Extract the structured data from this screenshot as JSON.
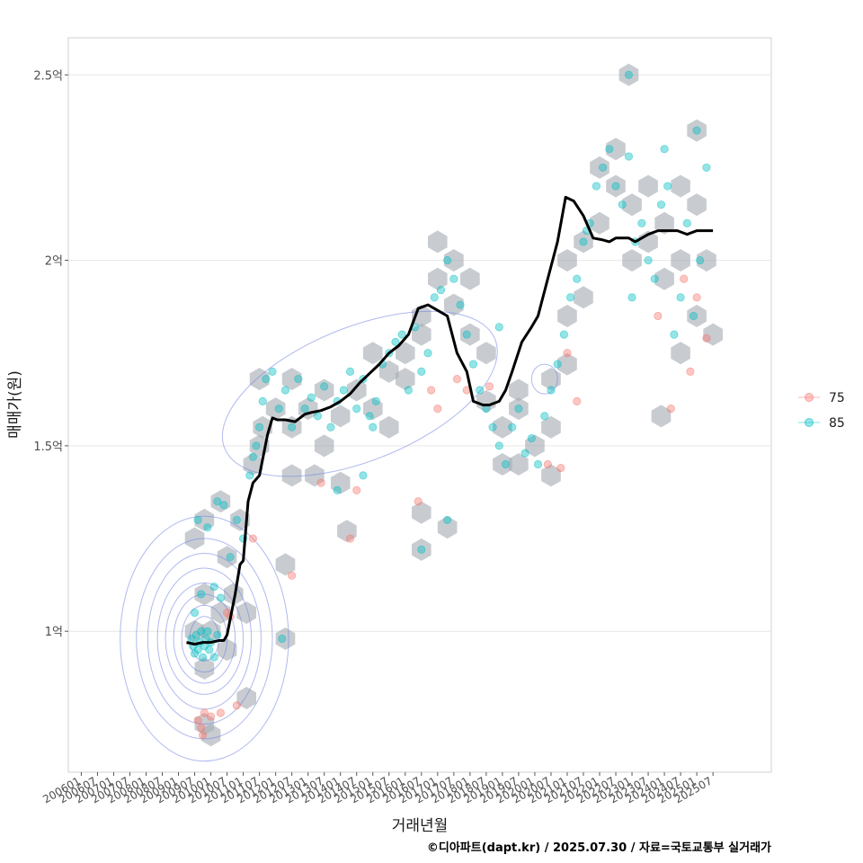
{
  "chart_data": {
    "type": "scatter",
    "title": "",
    "xlabel": "거래년월",
    "ylabel": "매매가(원)",
    "caption": "©디아파트(dapt.kr) / 2025.07.30 / 자료=국토교통부 실거래가",
    "x_ticks": [
      "200601",
      "200607",
      "200701",
      "200707",
      "200801",
      "200807",
      "200901",
      "200907",
      "201001",
      "201007",
      "201101",
      "201107",
      "201201",
      "201207",
      "201301",
      "201307",
      "201401",
      "201407",
      "201501",
      "201507",
      "201601",
      "201607",
      "201701",
      "201707",
      "201801",
      "201807",
      "201901",
      "201907",
      "202001",
      "202007",
      "202101",
      "202107",
      "202201",
      "202207",
      "202301",
      "202307",
      "202401",
      "202407",
      "202501",
      "202507"
    ],
    "y_ticks": [
      {
        "value": 1.0,
        "label": "1억"
      },
      {
        "value": 1.5,
        "label": "1.5억"
      },
      {
        "value": 2.0,
        "label": "2억"
      },
      {
        "value": 2.5,
        "label": "2.5억"
      }
    ],
    "ylim": [
      0.62,
      2.6
    ],
    "xlim": [
      2005.6,
      2027.3
    ],
    "y_unit": "억원",
    "grid": true,
    "legend_position": "right",
    "legend": [
      {
        "name": "75",
        "color": "#F8766D"
      },
      {
        "name": "85",
        "color": "#00BFC4"
      }
    ],
    "trend_line": {
      "name": "moving-average",
      "color": "#000000",
      "x": [
        2009.25,
        2009.5,
        2009.75,
        2010.0,
        2010.25,
        2010.4,
        2010.5,
        2010.75,
        2010.9,
        2011.0,
        2011.15,
        2011.3,
        2011.5,
        2011.75,
        2011.9,
        2012.05,
        2012.3,
        2012.6,
        2012.9,
        2013.1,
        2013.4,
        2013.7,
        2014.0,
        2014.3,
        2014.6,
        2014.9,
        2015.2,
        2015.5,
        2015.8,
        2016.1,
        2016.4,
        2016.7,
        2016.9,
        2017.1,
        2017.3,
        2017.6,
        2017.9,
        2018.1,
        2018.4,
        2018.6,
        2018.9,
        2019.1,
        2019.3,
        2019.6,
        2019.9,
        2020.1,
        2020.4,
        2020.7,
        2020.95,
        2021.2,
        2021.5,
        2021.8,
        2022.1,
        2022.3,
        2022.5,
        2022.7,
        2022.9,
        2023.1,
        2023.3,
        2023.5,
        2023.8,
        2024.1,
        2024.4,
        2024.7,
        2025.0,
        2025.3,
        2025.5
      ],
      "y": [
        0.97,
        0.965,
        0.97,
        0.97,
        0.975,
        0.975,
        0.99,
        1.1,
        1.18,
        1.19,
        1.35,
        1.4,
        1.42,
        1.53,
        1.575,
        1.57,
        1.57,
        1.565,
        1.585,
        1.59,
        1.595,
        1.605,
        1.62,
        1.64,
        1.67,
        1.695,
        1.72,
        1.75,
        1.77,
        1.8,
        1.87,
        1.88,
        1.87,
        1.86,
        1.85,
        1.75,
        1.7,
        1.62,
        1.61,
        1.61,
        1.62,
        1.65,
        1.7,
        1.78,
        1.82,
        1.85,
        1.95,
        2.05,
        2.17,
        2.16,
        2.12,
        2.06,
        2.055,
        2.05,
        2.06,
        2.06,
        2.06,
        2.05,
        2.06,
        2.07,
        2.08,
        2.08,
        2.08,
        2.07,
        2.08,
        2.08,
        2.08
      ]
    },
    "series": [
      {
        "name": "85",
        "color": "#00BFC4",
        "points": [
          [
            2009.4,
            0.98
          ],
          [
            2009.45,
            0.96
          ],
          [
            2009.5,
            0.94
          ],
          [
            2009.55,
            0.99
          ],
          [
            2009.6,
            0.95
          ],
          [
            2009.65,
            0.97
          ],
          [
            2009.7,
            1.0
          ],
          [
            2009.75,
            0.93
          ],
          [
            2009.8,
            0.96
          ],
          [
            2009.85,
            0.98
          ],
          [
            2009.9,
            1.0
          ],
          [
            2009.95,
            0.95
          ],
          [
            2010.0,
            0.97
          ],
          [
            2010.1,
            0.93
          ],
          [
            2010.2,
            0.99
          ],
          [
            2009.5,
            1.05
          ],
          [
            2009.7,
            1.1
          ],
          [
            2010.1,
            1.12
          ],
          [
            2010.3,
            1.09
          ],
          [
            2009.6,
            1.3
          ],
          [
            2009.9,
            1.28
          ],
          [
            2010.2,
            1.35
          ],
          [
            2010.4,
            1.34
          ],
          [
            2010.6,
            1.2
          ],
          [
            2010.8,
            1.3
          ],
          [
            2011.0,
            1.25
          ],
          [
            2011.2,
            1.42
          ],
          [
            2011.3,
            1.47
          ],
          [
            2011.4,
            1.5
          ],
          [
            2011.5,
            1.55
          ],
          [
            2011.6,
            1.62
          ],
          [
            2011.7,
            1.68
          ],
          [
            2011.9,
            1.7
          ],
          [
            2012.1,
            1.6
          ],
          [
            2012.3,
            1.65
          ],
          [
            2012.5,
            1.55
          ],
          [
            2012.7,
            1.68
          ],
          [
            2012.9,
            1.6
          ],
          [
            2013.1,
            1.63
          ],
          [
            2013.3,
            1.58
          ],
          [
            2013.5,
            1.66
          ],
          [
            2013.7,
            1.55
          ],
          [
            2013.9,
            1.62
          ],
          [
            2014.1,
            1.65
          ],
          [
            2014.3,
            1.7
          ],
          [
            2014.5,
            1.6
          ],
          [
            2014.7,
            1.68
          ],
          [
            2014.9,
            1.58
          ],
          [
            2015.1,
            1.62
          ],
          [
            2015.3,
            1.72
          ],
          [
            2015.5,
            1.75
          ],
          [
            2015.7,
            1.78
          ],
          [
            2015.9,
            1.8
          ],
          [
            2016.1,
            1.65
          ],
          [
            2016.3,
            1.82
          ],
          [
            2016.5,
            1.7
          ],
          [
            2016.7,
            1.75
          ],
          [
            2016.9,
            1.9
          ],
          [
            2017.1,
            1.92
          ],
          [
            2017.3,
            2.0
          ],
          [
            2017.5,
            1.95
          ],
          [
            2017.7,
            1.88
          ],
          [
            2017.9,
            1.8
          ],
          [
            2018.1,
            1.72
          ],
          [
            2018.3,
            1.65
          ],
          [
            2018.5,
            1.6
          ],
          [
            2018.7,
            1.55
          ],
          [
            2018.9,
            1.5
          ],
          [
            2019.1,
            1.45
          ],
          [
            2019.3,
            1.55
          ],
          [
            2019.5,
            1.6
          ],
          [
            2019.7,
            1.48
          ],
          [
            2019.9,
            1.52
          ],
          [
            2020.1,
            1.45
          ],
          [
            2020.3,
            1.58
          ],
          [
            2020.5,
            1.65
          ],
          [
            2020.7,
            1.72
          ],
          [
            2020.9,
            1.8
          ],
          [
            2021.1,
            1.9
          ],
          [
            2021.3,
            1.95
          ],
          [
            2021.5,
            2.05
          ],
          [
            2021.7,
            2.1
          ],
          [
            2021.9,
            2.2
          ],
          [
            2022.1,
            2.25
          ],
          [
            2022.3,
            2.3
          ],
          [
            2022.5,
            2.2
          ],
          [
            2022.7,
            2.15
          ],
          [
            2022.9,
            2.28
          ],
          [
            2023.1,
            2.05
          ],
          [
            2023.3,
            2.1
          ],
          [
            2023.5,
            2.0
          ],
          [
            2023.7,
            1.95
          ],
          [
            2023.9,
            2.15
          ],
          [
            2024.1,
            2.2
          ],
          [
            2024.3,
            1.8
          ],
          [
            2024.5,
            1.9
          ],
          [
            2024.7,
            2.1
          ],
          [
            2024.9,
            1.85
          ],
          [
            2025.1,
            2.0
          ],
          [
            2025.3,
            2.25
          ],
          [
            2025.0,
            2.35
          ],
          [
            2022.9,
            2.5
          ],
          [
            2016.5,
            1.22
          ],
          [
            2017.3,
            1.3
          ],
          [
            2013.9,
            1.38
          ],
          [
            2014.7,
            1.42
          ],
          [
            2012.2,
            0.98
          ],
          [
            2018.9,
            1.82
          ],
          [
            2021.6,
            2.08
          ],
          [
            2024.0,
            2.3
          ],
          [
            2023.0,
            1.9
          ],
          [
            2015.0,
            1.55
          ]
        ]
      },
      {
        "name": "75",
        "color": "#F8766D",
        "points": [
          [
            2009.6,
            0.76
          ],
          [
            2009.7,
            0.74
          ],
          [
            2009.8,
            0.78
          ],
          [
            2009.75,
            0.72
          ],
          [
            2010.0,
            0.77
          ],
          [
            2010.3,
            0.78
          ],
          [
            2010.5,
            1.05
          ],
          [
            2010.6,
            1.04
          ],
          [
            2010.8,
            0.8
          ],
          [
            2011.3,
            1.25
          ],
          [
            2012.5,
            1.15
          ],
          [
            2013.4,
            1.4
          ],
          [
            2014.3,
            1.25
          ],
          [
            2014.5,
            1.38
          ],
          [
            2016.4,
            1.35
          ],
          [
            2016.8,
            1.65
          ],
          [
            2017.0,
            1.6
          ],
          [
            2017.6,
            1.68
          ],
          [
            2017.9,
            1.65
          ],
          [
            2018.6,
            1.66
          ],
          [
            2020.4,
            1.45
          ],
          [
            2020.8,
            1.44
          ],
          [
            2021.0,
            1.75
          ],
          [
            2021.3,
            1.62
          ],
          [
            2023.8,
            1.85
          ],
          [
            2024.2,
            1.6
          ],
          [
            2024.6,
            1.95
          ],
          [
            2024.8,
            1.7
          ],
          [
            2025.3,
            1.79
          ],
          [
            2025.0,
            1.9
          ]
        ]
      }
    ],
    "hex_cells": [
      [
        2009.8,
        1.3
      ],
      [
        2010.3,
        1.35
      ],
      [
        2009.5,
        1.25
      ],
      [
        2010.5,
        1.2
      ],
      [
        2010.9,
        1.3
      ],
      [
        2009.8,
        1.1
      ],
      [
        2010.3,
        1.05
      ],
      [
        2010.7,
        1.1
      ],
      [
        2009.5,
        1.0
      ],
      [
        2010.0,
        1.0
      ],
      [
        2010.5,
        0.95
      ],
      [
        2009.8,
        0.9
      ],
      [
        2011.1,
        1.05
      ],
      [
        2009.8,
        0.75
      ],
      [
        2010.0,
        0.72
      ],
      [
        2011.1,
        0.82
      ],
      [
        2011.3,
        1.45
      ],
      [
        2011.5,
        1.5
      ],
      [
        2011.5,
        1.68
      ],
      [
        2012.0,
        1.6
      ],
      [
        2012.5,
        1.55
      ],
      [
        2012.5,
        1.68
      ],
      [
        2013.0,
        1.6
      ],
      [
        2013.5,
        1.65
      ],
      [
        2013.5,
        1.5
      ],
      [
        2014.0,
        1.58
      ],
      [
        2014.5,
        1.65
      ],
      [
        2014.0,
        1.4
      ],
      [
        2013.2,
        1.42
      ],
      [
        2012.5,
        1.42
      ],
      [
        2011.6,
        1.55
      ],
      [
        2015.0,
        1.6
      ],
      [
        2015.5,
        1.7
      ],
      [
        2015.0,
        1.75
      ],
      [
        2016.0,
        1.75
      ],
      [
        2016.5,
        1.8
      ],
      [
        2016.0,
        1.68
      ],
      [
        2016.5,
        1.85
      ],
      [
        2017.0,
        1.95
      ],
      [
        2017.0,
        2.05
      ],
      [
        2017.5,
        2.0
      ],
      [
        2017.5,
        1.88
      ],
      [
        2018.0,
        1.95
      ],
      [
        2018.0,
        1.8
      ],
      [
        2018.5,
        1.75
      ],
      [
        2018.5,
        1.62
      ],
      [
        2019.0,
        1.55
      ],
      [
        2019.5,
        1.6
      ],
      [
        2019.0,
        1.45
      ],
      [
        2019.5,
        1.45
      ],
      [
        2020.0,
        1.5
      ],
      [
        2020.5,
        1.55
      ],
      [
        2020.5,
        1.42
      ],
      [
        2020.5,
        1.68
      ],
      [
        2021.0,
        1.72
      ],
      [
        2021.0,
        1.85
      ],
      [
        2021.5,
        1.9
      ],
      [
        2021.5,
        2.05
      ],
      [
        2022.0,
        2.1
      ],
      [
        2022.0,
        2.25
      ],
      [
        2022.5,
        2.2
      ],
      [
        2022.5,
        2.3
      ],
      [
        2023.0,
        2.15
      ],
      [
        2023.0,
        2.0
      ],
      [
        2023.5,
        2.05
      ],
      [
        2023.5,
        2.2
      ],
      [
        2024.0,
        2.1
      ],
      [
        2024.0,
        1.95
      ],
      [
        2024.5,
        2.0
      ],
      [
        2024.5,
        2.2
      ],
      [
        2025.0,
        2.15
      ],
      [
        2025.0,
        1.85
      ],
      [
        2025.3,
        2.0
      ],
      [
        2025.5,
        1.8
      ],
      [
        2025.0,
        2.35
      ],
      [
        2022.9,
        2.5
      ],
      [
        2016.5,
        1.22
      ],
      [
        2016.5,
        1.32
      ],
      [
        2017.3,
        1.28
      ],
      [
        2014.2,
        1.27
      ],
      [
        2012.3,
        1.18
      ],
      [
        2012.3,
        0.98
      ],
      [
        2023.9,
        1.58
      ],
      [
        2024.5,
        1.75
      ],
      [
        2021.0,
        2.0
      ],
      [
        2019.5,
        1.65
      ],
      [
        2015.5,
        1.55
      ]
    ],
    "contours": [
      {
        "cx": 2009.8,
        "cy": 0.98,
        "rx": [
          0.45,
          0.7,
          0.95,
          1.2,
          1.45,
          1.75,
          2.1,
          2.6
        ],
        "ry": [
          0.06,
          0.09,
          0.12,
          0.15,
          0.19,
          0.23,
          0.27,
          0.33
        ]
      },
      {
        "cx": 2014.6,
        "cy": 1.64,
        "rx": [
          4.5
        ],
        "ry": [
          0.18
        ],
        "rotate": -22
      },
      {
        "cx": 2020.3,
        "cy": 1.68,
        "rx": [
          0.4
        ],
        "ry": [
          0.04
        ]
      }
    ]
  }
}
